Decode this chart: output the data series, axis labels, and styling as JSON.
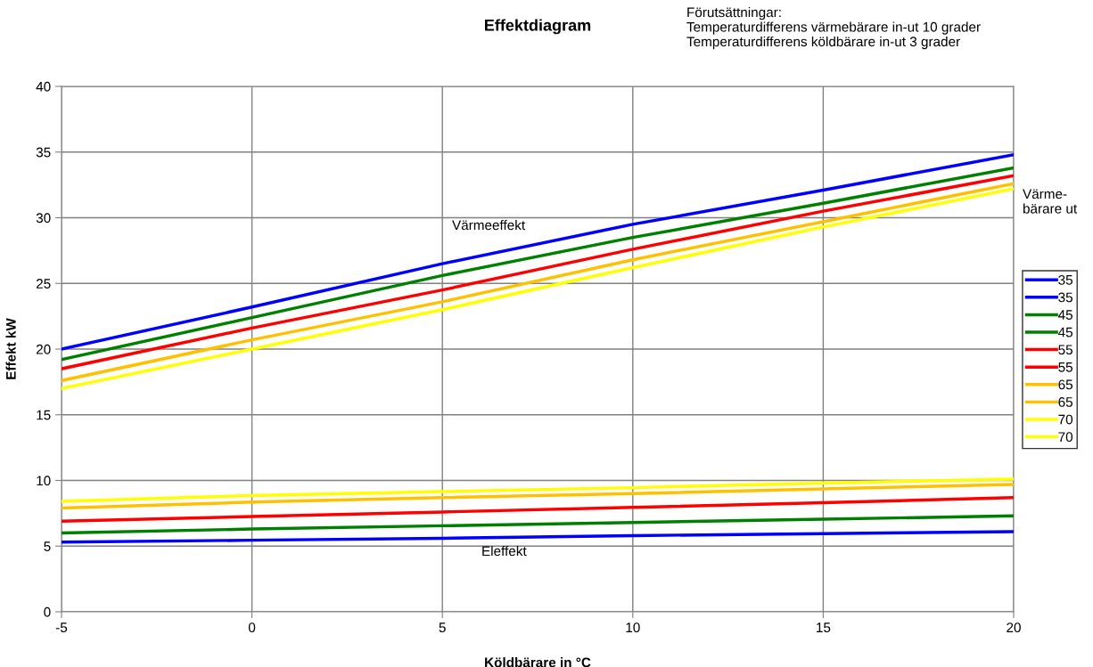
{
  "chart_data": {
    "type": "line",
    "title": "Effektdiagram",
    "xlabel": "Köldbärare in °C",
    "ylabel": "Effekt kW",
    "legend_title": "Värme-\nbärare ut",
    "x": [
      -5,
      0,
      5,
      10,
      15,
      20
    ],
    "series": [
      {
        "name": "35",
        "color": "#0000ff",
        "values": [
          20.0,
          23.2,
          26.5,
          29.5,
          32.1,
          34.8
        ]
      },
      {
        "name": "35",
        "color": "#0000ff",
        "values": [
          5.3,
          5.45,
          5.6,
          5.8,
          5.95,
          6.1
        ]
      },
      {
        "name": "45",
        "color": "#008000",
        "values": [
          19.2,
          22.4,
          25.6,
          28.5,
          31.1,
          33.8
        ]
      },
      {
        "name": "45",
        "color": "#008000",
        "values": [
          6.0,
          6.3,
          6.55,
          6.8,
          7.05,
          7.3
        ]
      },
      {
        "name": "55",
        "color": "#ff0000",
        "values": [
          18.5,
          21.6,
          24.5,
          27.6,
          30.5,
          33.2
        ]
      },
      {
        "name": "55",
        "color": "#ff0000",
        "values": [
          6.9,
          7.25,
          7.6,
          7.95,
          8.3,
          8.7
        ]
      },
      {
        "name": "65",
        "color": "#ffc000",
        "values": [
          17.6,
          20.7,
          23.6,
          26.8,
          29.7,
          32.6
        ]
      },
      {
        "name": "65",
        "color": "#ffc000",
        "values": [
          7.9,
          8.35,
          8.7,
          9.0,
          9.35,
          9.7
        ]
      },
      {
        "name": "70",
        "color": "#ffff00",
        "values": [
          17.0,
          20.0,
          23.0,
          26.2,
          29.3,
          32.2
        ]
      },
      {
        "name": "70",
        "color": "#ffff00",
        "values": [
          8.4,
          8.85,
          9.15,
          9.45,
          9.8,
          10.1
        ]
      }
    ],
    "xlim": [
      -5,
      20
    ],
    "xticks": [
      -5,
      0,
      5,
      10,
      15,
      20
    ],
    "ylim": [
      0,
      40
    ],
    "yticks": [
      0,
      5,
      10,
      15,
      20,
      25,
      30,
      35,
      40
    ],
    "grid": true,
    "legend": "right",
    "marker": "none",
    "line_style": "solid",
    "annotations": [
      "Värmeeffekt",
      "Eleffekt",
      "Förutsättningar:\nTemperaturdifferens värmebärare in-ut 10 grader\nTemperaturdifferens köldbärare in-ut 3 grader"
    ]
  }
}
